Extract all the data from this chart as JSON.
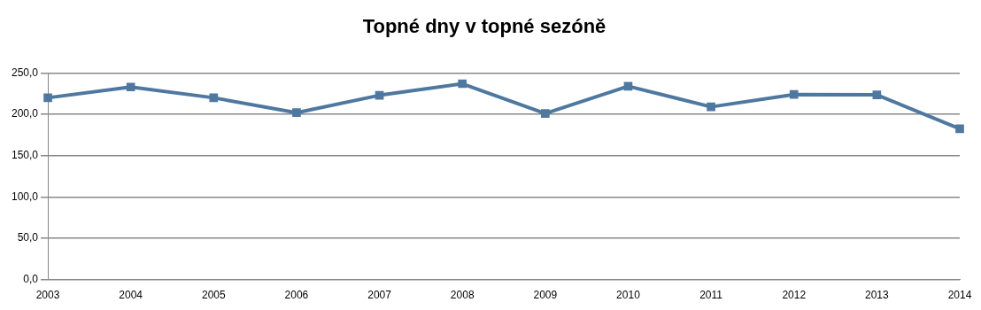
{
  "chart_data": {
    "type": "line",
    "title": "Topné dny v topné sezóně",
    "categories": [
      "2003",
      "2004",
      "2005",
      "2006",
      "2007",
      "2008",
      "2009",
      "2010",
      "2011",
      "2012",
      "2013",
      "2014"
    ],
    "series": [
      {
        "color": "#4f78a0",
        "values": [
          220,
          233,
          220,
          202,
          223,
          237,
          201,
          234,
          209,
          224,
          223.5,
          182.5
        ]
      }
    ],
    "ylim": [
      0,
      250
    ],
    "yticks": [
      {
        "value": 0,
        "label": "0,0"
      },
      {
        "value": 50,
        "label": "50,0"
      },
      {
        "value": 100,
        "label": "100,0"
      },
      {
        "value": 150,
        "label": "150,0"
      },
      {
        "value": 200,
        "label": "200,0"
      },
      {
        "value": 250,
        "label": "250,0"
      }
    ],
    "grid": "y",
    "legend": false,
    "marker": "square",
    "line_style": "solid"
  }
}
